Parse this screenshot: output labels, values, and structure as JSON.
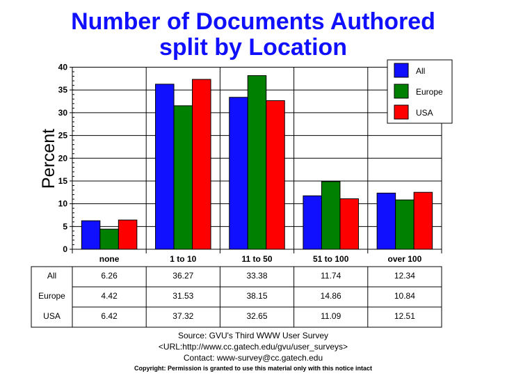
{
  "chart_data": {
    "type": "bar",
    "title": [
      "Number of Documents Authored",
      "split by Location"
    ],
    "ylabel": "Percent",
    "xlabel": "",
    "ylim": [
      0,
      40
    ],
    "yticks": [
      0,
      5,
      10,
      15,
      20,
      25,
      30,
      35,
      40
    ],
    "grid": true,
    "legend_position": "top-right",
    "categories": [
      "none",
      "1 to 10",
      "11 to 50",
      "51 to 100",
      "over 100"
    ],
    "series": [
      {
        "name": "All",
        "color": "#1010ff",
        "values": [
          6.26,
          36.27,
          33.38,
          11.74,
          12.34
        ]
      },
      {
        "name": "Europe",
        "color": "#008000",
        "values": [
          4.42,
          31.53,
          38.15,
          14.86,
          10.84
        ]
      },
      {
        "name": "USA",
        "color": "#ff0000",
        "values": [
          6.42,
          37.32,
          32.65,
          11.09,
          12.51
        ]
      }
    ]
  },
  "footer": {
    "source": "Source: GVU's Third WWW User Survey",
    "url": "<URL:http://www.cc.gatech.edu/gvu/user_surveys>",
    "contact": "Contact: www-survey@cc.gatech.edu",
    "copyright": "Copyright: Permission is granted to use this material only with this notice intact"
  }
}
